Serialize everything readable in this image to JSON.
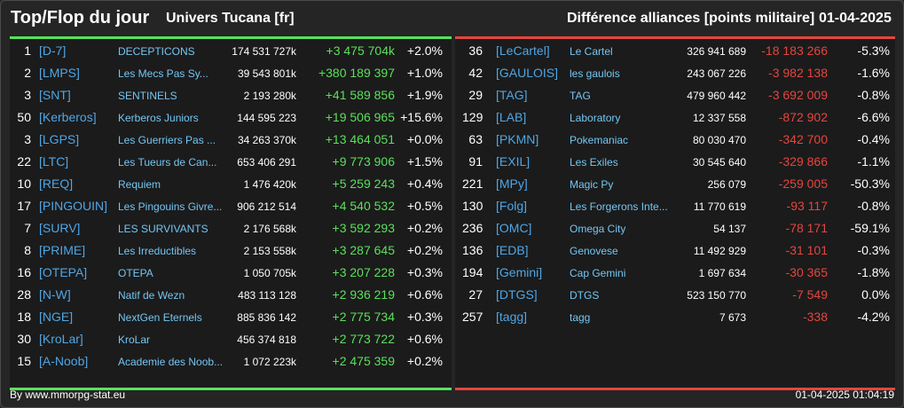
{
  "header": {
    "title": "Top/Flop du jour",
    "universe": "Univers Tucana [fr]",
    "metric": "Différence alliances [points militaire]",
    "date": "01-04-2025"
  },
  "colors": {
    "top_accent": "#56e35a",
    "flop_accent": "#e5453f",
    "tag_color": "#4ea6e6",
    "name_color": "#74c6f4"
  },
  "top": [
    {
      "rank": "1",
      "tag": "[D-7]",
      "name": "DECEPTICONS",
      "points": "174 531 727k",
      "diff": "+3 475 704k",
      "pct": "+2.0%"
    },
    {
      "rank": "2",
      "tag": "[LMPS]",
      "name": "Les Mecs Pas Sy...",
      "points": "39 543 801k",
      "diff": "+380 189 397",
      "pct": "+1.0%"
    },
    {
      "rank": "3",
      "tag": "[SNT]",
      "name": "SENTINELS",
      "points": "2 193 280k",
      "diff": "+41 589 856",
      "pct": "+1.9%"
    },
    {
      "rank": "50",
      "tag": "[Kerberos]",
      "name": "Kerberos Juniors",
      "points": "144 595 223",
      "diff": "+19 506 965",
      "pct": "+15.6%"
    },
    {
      "rank": "3",
      "tag": "[LGPS]",
      "name": "Les Guerriers Pas ...",
      "points": "34 263 370k",
      "diff": "+13 464 051",
      "pct": "+0.0%"
    },
    {
      "rank": "22",
      "tag": "[LTC]",
      "name": "Les Tueurs de Can...",
      "points": "653 406 291",
      "diff": "+9 773 906",
      "pct": "+1.5%"
    },
    {
      "rank": "10",
      "tag": "[REQ]",
      "name": "Requiem",
      "points": "1 476 420k",
      "diff": "+5 259 243",
      "pct": "+0.4%"
    },
    {
      "rank": "17",
      "tag": "[PINGOUIN]",
      "name": "Les Pingouins Givre...",
      "points": "906 212 514",
      "diff": "+4 540 532",
      "pct": "+0.5%"
    },
    {
      "rank": "7",
      "tag": "[SURV]",
      "name": "LES SURVIVANTS",
      "points": "2 176 568k",
      "diff": "+3 592 293",
      "pct": "+0.2%"
    },
    {
      "rank": "8",
      "tag": "[PRIME]",
      "name": "Les Irreductibles",
      "points": "2 153 558k",
      "diff": "+3 287 645",
      "pct": "+0.2%"
    },
    {
      "rank": "16",
      "tag": "[OTEPA]",
      "name": "OTEPA",
      "points": "1 050 705k",
      "diff": "+3 207 228",
      "pct": "+0.3%"
    },
    {
      "rank": "28",
      "tag": "[N-W]",
      "name": "Natif de Wezn",
      "points": "483 113 128",
      "diff": "+2 936 219",
      "pct": "+0.6%"
    },
    {
      "rank": "18",
      "tag": "[NGE]",
      "name": "NextGen Eternels",
      "points": "885 836 142",
      "diff": "+2 775 734",
      "pct": "+0.3%"
    },
    {
      "rank": "30",
      "tag": "[KroLar]",
      "name": "KroLar",
      "points": "456 374 818",
      "diff": "+2 773 722",
      "pct": "+0.6%"
    },
    {
      "rank": "15",
      "tag": "[A-Noob]",
      "name": "Academie des Noob...",
      "points": "1 072 223k",
      "diff": "+2 475 359",
      "pct": "+0.2%"
    }
  ],
  "flop": [
    {
      "rank": "36",
      "tag": "[LeCartel]",
      "name": "Le Cartel",
      "points": "326 941 689",
      "diff": "-18 183 266",
      "pct": "-5.3%"
    },
    {
      "rank": "42",
      "tag": "[GAULOIS]",
      "name": "les gaulois",
      "points": "243 067 226",
      "diff": "-3 982 138",
      "pct": "-1.6%"
    },
    {
      "rank": "29",
      "tag": "[TAG]",
      "name": "TAG",
      "points": "479 960 442",
      "diff": "-3 692 009",
      "pct": "-0.8%"
    },
    {
      "rank": "129",
      "tag": "[LAB]",
      "name": "Laboratory",
      "points": "12 337 558",
      "diff": "-872 902",
      "pct": "-6.6%"
    },
    {
      "rank": "63",
      "tag": "[PKMN]",
      "name": "Pokemaniac",
      "points": "80 030 470",
      "diff": "-342 700",
      "pct": "-0.4%"
    },
    {
      "rank": "91",
      "tag": "[EXIL]",
      "name": "Les Exiles",
      "points": "30 545 640",
      "diff": "-329 866",
      "pct": "-1.1%"
    },
    {
      "rank": "221",
      "tag": "[MPy]",
      "name": "Magic Py",
      "points": "256 079",
      "diff": "-259 005",
      "pct": "-50.3%"
    },
    {
      "rank": "130",
      "tag": "[Folg]",
      "name": "Les Forgerons Inte...",
      "points": "11 770 619",
      "diff": "-93 117",
      "pct": "-0.8%"
    },
    {
      "rank": "236",
      "tag": "[OMC]",
      "name": "Omega City",
      "points": "54 137",
      "diff": "-78 171",
      "pct": "-59.1%"
    },
    {
      "rank": "136",
      "tag": "[EDB]",
      "name": "Genovese",
      "points": "11 492 929",
      "diff": "-31 101",
      "pct": "-0.3%"
    },
    {
      "rank": "194",
      "tag": "[Gemini]",
      "name": "Cap Gemini",
      "points": "1 697 634",
      "diff": "-30 365",
      "pct": "-1.8%"
    },
    {
      "rank": "27",
      "tag": "[DTGS]",
      "name": "DTGS",
      "points": "523 150 770",
      "diff": "-7 549",
      "pct": "0.0%"
    },
    {
      "rank": "257",
      "tag": "[tagg]",
      "name": "tagg",
      "points": "7 673",
      "diff": "-338",
      "pct": "-4.2%"
    }
  ],
  "footer": {
    "source": "By www.mmorpg-stat.eu",
    "timestamp": "01-04-2025 01:04:19"
  }
}
